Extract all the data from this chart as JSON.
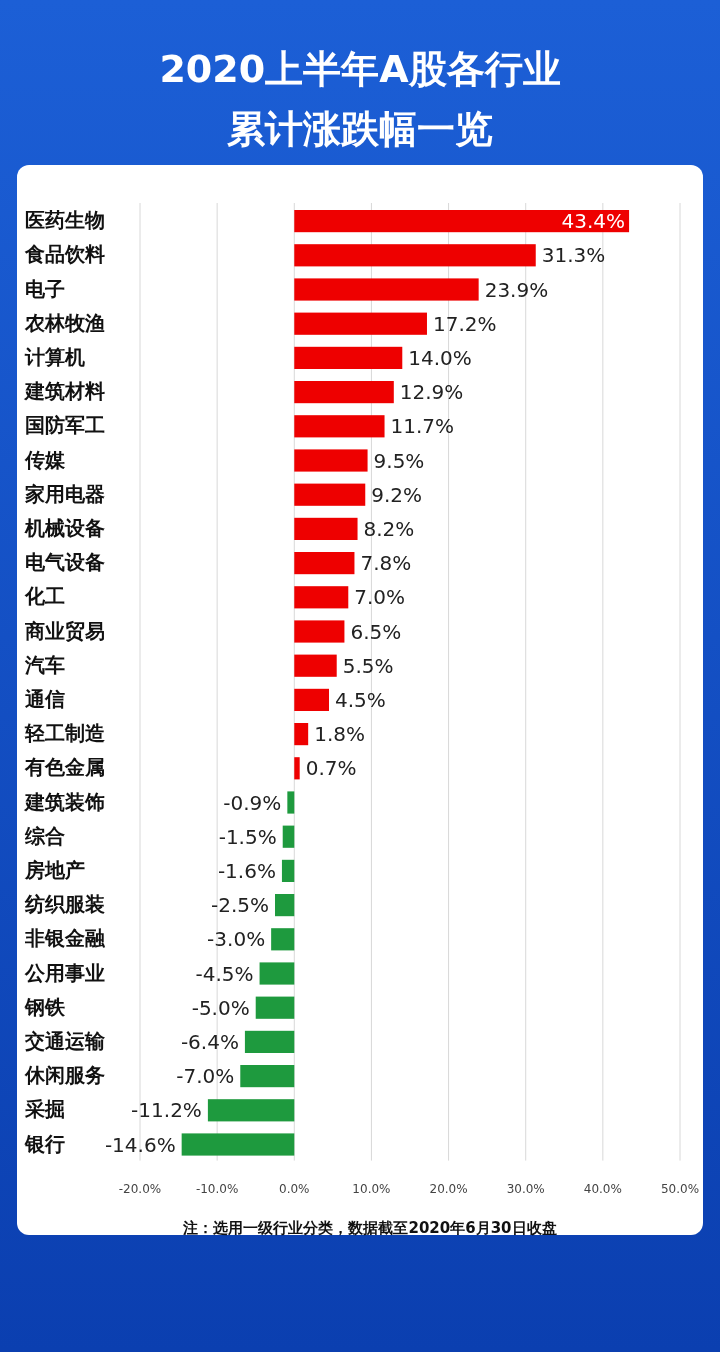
{
  "chart_data": {
    "type": "bar",
    "orientation": "horizontal",
    "title": "2020上半年A股各行业",
    "subtitle": "累计涨跌幅一览",
    "categories": [
      "医药生物",
      "食品饮料",
      "电子",
      "农林牧渔",
      "计算机",
      "建筑材料",
      "国防军工",
      "传媒",
      "家用电器",
      "机械设备",
      "电气设备",
      "化工",
      "商业贸易",
      "汽车",
      "通信",
      "轻工制造",
      "有色金属",
      "建筑装饰",
      "综合",
      "房地产",
      "纺织服装",
      "非银金融",
      "公用事业",
      "钢铁",
      "交通运输",
      "休闲服务",
      "采掘",
      "银行"
    ],
    "values": [
      43.4,
      31.3,
      23.9,
      17.2,
      14.0,
      12.9,
      11.7,
      9.5,
      9.2,
      8.2,
      7.8,
      7.0,
      6.5,
      5.5,
      4.5,
      1.8,
      0.7,
      -0.9,
      -1.5,
      -1.6,
      -2.5,
      -3.0,
      -4.5,
      -5.0,
      -6.4,
      -7.0,
      -11.2,
      -14.6
    ],
    "value_labels": [
      "43.4%",
      "31.3%",
      "23.9%",
      "17.2%",
      "14.0%",
      "12.9%",
      "11.7%",
      "9.5%",
      "9.2%",
      "8.2%",
      "7.8%",
      "7.0%",
      "6.5%",
      "5.5%",
      "4.5%",
      "1.8%",
      "0.7%",
      "-0.9%",
      "-1.5%",
      "-1.6%",
      "-2.5%",
      "-3.0%",
      "-4.5%",
      "-5.0%",
      "-6.4%",
      "-7.0%",
      "-11.2%",
      "-14.6%"
    ],
    "colors": [
      "#ee0000",
      "#ee0000",
      "#ee0000",
      "#ee0000",
      "#ee0000",
      "#ee0000",
      "#ee0000",
      "#ee0000",
      "#ee0000",
      "#ee0000",
      "#ee0000",
      "#ee0000",
      "#ee0000",
      "#ee0000",
      "#ee0000",
      "#ee0000",
      "#ee0000",
      "#1e9a3e",
      "#1e9a3e",
      "#1e9a3e",
      "#1e9a3e",
      "#1e9a3e",
      "#1e9a3e",
      "#1e9a3e",
      "#1e9a3e",
      "#1e9a3e",
      "#1e9a3e",
      "#1e9a3e"
    ],
    "xlim": [
      -20,
      50
    ],
    "xticks": [
      {
        "value": -20,
        "label": "-20.0%"
      },
      {
        "value": -10,
        "label": "-10.0%"
      },
      {
        "value": 0,
        "label": "0.0%"
      },
      {
        "value": 10,
        "label": "10.0%"
      },
      {
        "value": 20,
        "label": "20.0%"
      },
      {
        "value": 30,
        "label": "30.0%"
      },
      {
        "value": 40,
        "label": "40.0%"
      },
      {
        "value": 50,
        "label": "50.0%"
      }
    ],
    "grid": "x",
    "annotations": [
      "注：选用一级行业分类，数据截至2020年6月30日收盘"
    ]
  }
}
